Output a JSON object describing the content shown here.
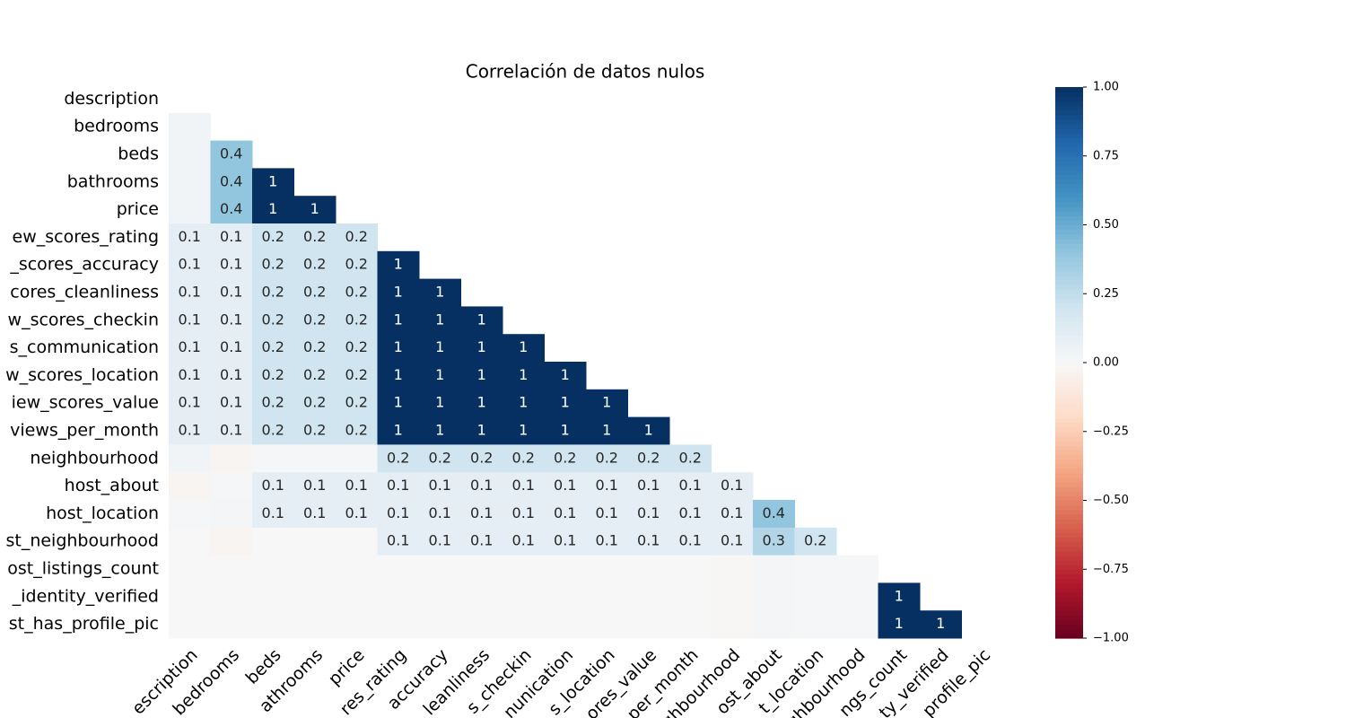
{
  "chart_data": {
    "type": "heatmap",
    "title": "Correlación de datos nulos",
    "row_labels": [
      "description",
      "bedrooms",
      "beds",
      "bathrooms",
      "price",
      "ew_scores_rating",
      "_scores_accuracy",
      "cores_cleanliness",
      "w_scores_checkin",
      "s_communication",
      "w_scores_location",
      "iew_scores_value",
      "views_per_month",
      "neighbourhood",
      "host_about",
      "host_location",
      "st_neighbourhood",
      "ost_listings_count",
      "_identity_verified",
      "st_has_profile_pic"
    ],
    "col_labels": [
      "escription",
      "bedrooms",
      "beds",
      "athrooms",
      "price",
      "res_rating",
      "accuracy",
      "leanliness",
      "s_checkin",
      "nunication",
      "s_location",
      "ores_value",
      "per_month",
      "ghbourhood",
      "ost_about",
      "t_location",
      "ighbourhood",
      "ngs_count",
      "ty_verified",
      "profile_pic"
    ],
    "values": [
      [
        null,
        null,
        null,
        null,
        null,
        null,
        null,
        null,
        null,
        null,
        null,
        null,
        null,
        null,
        null,
        null,
        null,
        null,
        null,
        null
      ],
      [
        0.03,
        null,
        null,
        null,
        null,
        null,
        null,
        null,
        null,
        null,
        null,
        null,
        null,
        null,
        null,
        null,
        null,
        null,
        null,
        null
      ],
      [
        0.03,
        0.4,
        null,
        null,
        null,
        null,
        null,
        null,
        null,
        null,
        null,
        null,
        null,
        null,
        null,
        null,
        null,
        null,
        null,
        null
      ],
      [
        0.03,
        0.4,
        1,
        null,
        null,
        null,
        null,
        null,
        null,
        null,
        null,
        null,
        null,
        null,
        null,
        null,
        null,
        null,
        null,
        null
      ],
      [
        0.03,
        0.4,
        1,
        1,
        null,
        null,
        null,
        null,
        null,
        null,
        null,
        null,
        null,
        null,
        null,
        null,
        null,
        null,
        null,
        null
      ],
      [
        0.1,
        0.1,
        0.2,
        0.2,
        0.2,
        null,
        null,
        null,
        null,
        null,
        null,
        null,
        null,
        null,
        null,
        null,
        null,
        null,
        null,
        null
      ],
      [
        0.1,
        0.1,
        0.2,
        0.2,
        0.2,
        1,
        null,
        null,
        null,
        null,
        null,
        null,
        null,
        null,
        null,
        null,
        null,
        null,
        null,
        null
      ],
      [
        0.1,
        0.1,
        0.2,
        0.2,
        0.2,
        1,
        1,
        null,
        null,
        null,
        null,
        null,
        null,
        null,
        null,
        null,
        null,
        null,
        null,
        null
      ],
      [
        0.1,
        0.1,
        0.2,
        0.2,
        0.2,
        1,
        1,
        1,
        null,
        null,
        null,
        null,
        null,
        null,
        null,
        null,
        null,
        null,
        null,
        null
      ],
      [
        0.1,
        0.1,
        0.2,
        0.2,
        0.2,
        1,
        1,
        1,
        1,
        null,
        null,
        null,
        null,
        null,
        null,
        null,
        null,
        null,
        null,
        null
      ],
      [
        0.1,
        0.1,
        0.2,
        0.2,
        0.2,
        1,
        1,
        1,
        1,
        1,
        null,
        null,
        null,
        null,
        null,
        null,
        null,
        null,
        null,
        null
      ],
      [
        0.1,
        0.1,
        0.2,
        0.2,
        0.2,
        1,
        1,
        1,
        1,
        1,
        1,
        null,
        null,
        null,
        null,
        null,
        null,
        null,
        null,
        null
      ],
      [
        0.1,
        0.1,
        0.2,
        0.2,
        0.2,
        1,
        1,
        1,
        1,
        1,
        1,
        1,
        null,
        null,
        null,
        null,
        null,
        null,
        null,
        null
      ],
      [
        0.03,
        -0.02,
        0.01,
        0.01,
        0.01,
        0.2,
        0.2,
        0.2,
        0.2,
        0.2,
        0.2,
        0.2,
        0.2,
        null,
        null,
        null,
        null,
        null,
        null,
        null
      ],
      [
        -0.02,
        0.01,
        0.1,
        0.1,
        0.1,
        0.1,
        0.1,
        0.1,
        0.1,
        0.1,
        0.1,
        0.1,
        0.1,
        0.1,
        null,
        null,
        null,
        null,
        null,
        null
      ],
      [
        0.01,
        0.02,
        0.1,
        0.1,
        0.1,
        0.1,
        0.1,
        0.1,
        0.1,
        0.1,
        0.1,
        0.1,
        0.1,
        0.1,
        0.4,
        null,
        null,
        null,
        null,
        null
      ],
      [
        0,
        -0.02,
        0,
        0,
        0,
        0.1,
        0.1,
        0.1,
        0.1,
        0.1,
        0.1,
        0.1,
        0.1,
        0.1,
        0.3,
        0.2,
        null,
        null,
        null,
        null
      ],
      [
        0,
        0,
        0,
        0,
        0,
        0,
        0,
        0,
        0,
        0,
        0,
        0,
        0,
        -0.01,
        0.02,
        0.01,
        0.01,
        null,
        null,
        null
      ],
      [
        0,
        0,
        0,
        0,
        0,
        0,
        0,
        0,
        0,
        0,
        0,
        0,
        0,
        -0.01,
        0.02,
        0.01,
        0.01,
        1,
        null,
        null
      ],
      [
        0,
        0,
        0,
        0,
        0,
        0,
        0,
        0,
        0,
        0,
        0,
        0,
        0,
        -0.01,
        0.02,
        0.01,
        0.01,
        1,
        1,
        null
      ]
    ],
    "colormap": [
      "#67001f",
      "#b2182b",
      "#d6604d",
      "#f4a582",
      "#fddbc7",
      "#f7f7f7",
      "#d1e5f0",
      "#92c5de",
      "#4393c3",
      "#2166ac",
      "#053061"
    ],
    "clim": [
      -1,
      1
    ],
    "cticks": [
      {
        "value": -1,
        "label": "−1.00"
      },
      {
        "value": -0.75,
        "label": "−0.75"
      },
      {
        "value": -0.5,
        "label": "−0.50"
      },
      {
        "value": -0.25,
        "label": "−0.25"
      },
      {
        "value": 0,
        "label": "0.00"
      },
      {
        "value": 0.25,
        "label": "0.25"
      },
      {
        "value": 0.5,
        "label": "0.50"
      },
      {
        "value": 0.75,
        "label": "0.75"
      },
      {
        "value": 1,
        "label": "1.00"
      }
    ]
  }
}
